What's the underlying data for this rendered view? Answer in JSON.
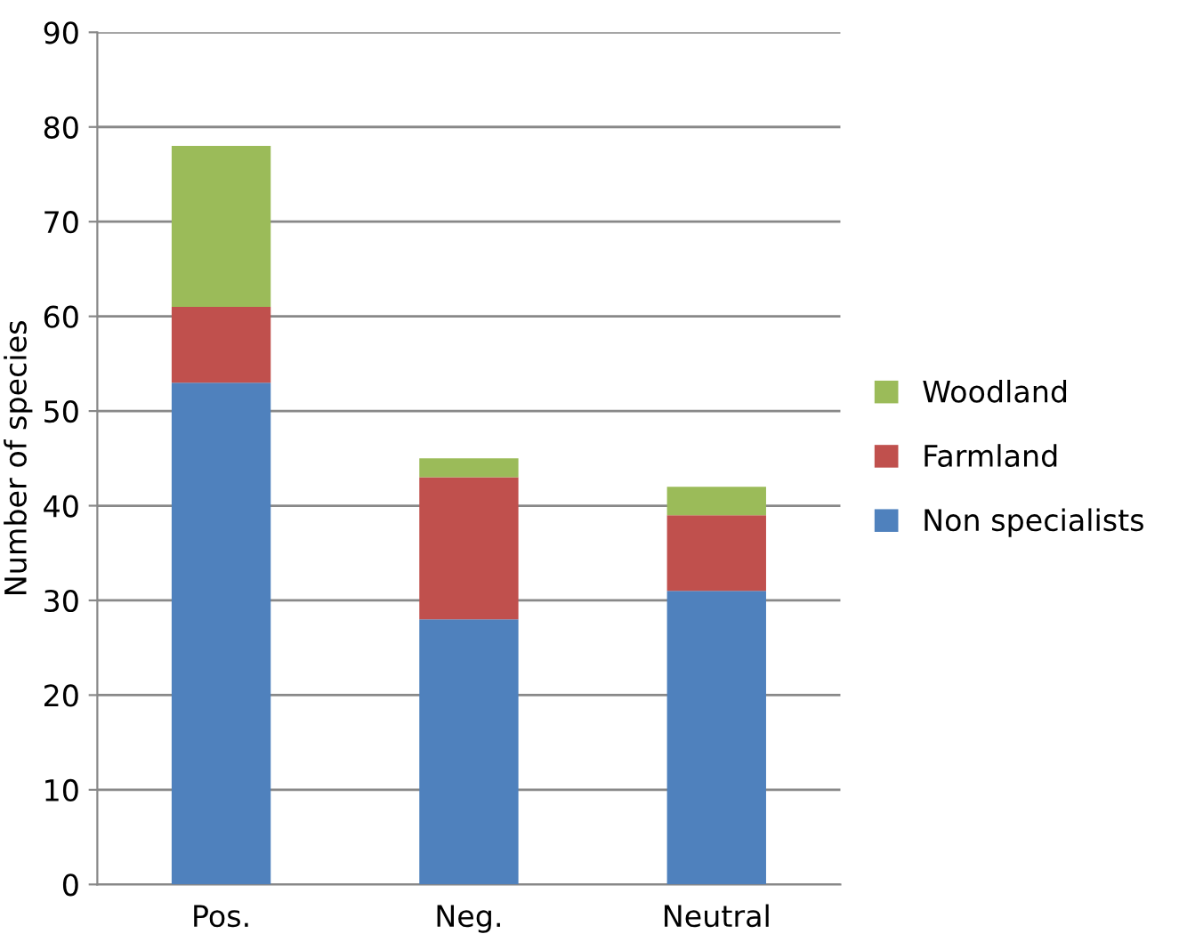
{
  "chart_data": {
    "type": "bar",
    "stacked": true,
    "ylabel": "Number of species",
    "categories": [
      "Pos.",
      "Neg.",
      "Neutral"
    ],
    "series": [
      {
        "name": "Non specialists",
        "color": "#4f81bd",
        "values": [
          53,
          28,
          31
        ]
      },
      {
        "name": "Farmland",
        "color": "#c0504d",
        "values": [
          8,
          15,
          8
        ]
      },
      {
        "name": "Woodland",
        "color": "#9bbb59",
        "values": [
          17,
          2,
          3
        ]
      }
    ],
    "ylim": [
      0,
      90
    ],
    "yticks": [
      0,
      10,
      20,
      30,
      40,
      50,
      60,
      70,
      80,
      90
    ],
    "grid": "y",
    "legend": "right"
  }
}
